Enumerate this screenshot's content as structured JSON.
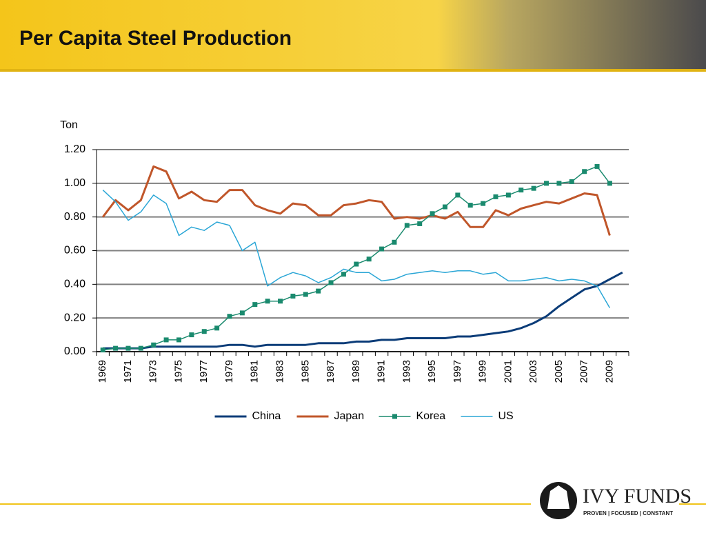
{
  "chart_data": {
    "type": "line",
    "title": "Per Capita Steel Production",
    "y_label": "Ton",
    "categories": [
      "1969",
      null,
      "1971",
      null,
      "1973",
      null,
      "1975",
      null,
      "1977",
      null,
      "1979",
      null,
      "1981",
      null,
      "1983",
      null,
      "1985",
      null,
      "1987",
      null,
      "1989",
      null,
      "1991",
      null,
      "1993",
      null,
      "1995",
      null,
      "1997",
      null,
      "1999",
      null,
      "2001",
      null,
      "2003",
      null,
      "2005",
      null,
      "2007",
      null,
      "2009",
      null
    ],
    "ylim": [
      0,
      1.2
    ],
    "yticks": [
      {
        "value": 0,
        "label": "0.00"
      },
      {
        "value": 0.2,
        "label": "0.20"
      },
      {
        "value": 0.4,
        "label": "0.40"
      },
      {
        "value": 0.6,
        "label": "0.60"
      },
      {
        "value": 0.8,
        "label": "0.80"
      },
      {
        "value": 1,
        "label": "1.00"
      },
      {
        "value": 1.2,
        "label": "1.20"
      }
    ],
    "grid": true,
    "legend": "bottom",
    "series": [
      {
        "name": "China",
        "color": "#0b3c78",
        "width": 3,
        "values": [
          0.02,
          0.02,
          0.02,
          0.02,
          0.03,
          0.03,
          0.03,
          0.03,
          0.03,
          0.03,
          0.04,
          0.04,
          0.03,
          0.04,
          0.04,
          0.04,
          0.04,
          0.05,
          0.05,
          0.05,
          0.06,
          0.06,
          0.07,
          0.07,
          0.08,
          0.08,
          0.08,
          0.08,
          0.09,
          0.09,
          0.1,
          0.11,
          0.12,
          0.14,
          0.17,
          0.21,
          0.27,
          0.32,
          0.37,
          0.39,
          0.43,
          0.47
        ]
      },
      {
        "name": "Japan",
        "color": "#c0562a",
        "width": 3,
        "values": [
          0.8,
          0.9,
          0.84,
          0.9,
          1.1,
          1.07,
          0.91,
          0.95,
          0.9,
          0.89,
          0.96,
          0.96,
          0.87,
          0.84,
          0.82,
          0.88,
          0.87,
          0.81,
          0.81,
          0.87,
          0.88,
          0.9,
          0.89,
          0.79,
          0.8,
          0.79,
          0.81,
          0.79,
          0.83,
          0.74,
          0.74,
          0.84,
          0.81,
          0.85,
          0.87,
          0.89,
          0.88,
          0.91,
          0.94,
          0.93,
          0.69,
          null
        ]
      },
      {
        "name": "Korea",
        "color": "#1a8a6e",
        "width": 1.5,
        "marker": "square",
        "values": [
          0.01,
          0.02,
          0.02,
          0.02,
          0.04,
          0.07,
          0.07,
          0.1,
          0.12,
          0.14,
          0.21,
          0.23,
          0.28,
          0.3,
          0.3,
          0.33,
          0.34,
          0.36,
          0.41,
          0.46,
          0.52,
          0.55,
          0.61,
          0.65,
          0.75,
          0.76,
          0.82,
          0.86,
          0.93,
          0.87,
          0.88,
          0.92,
          0.93,
          0.96,
          0.97,
          1.0,
          1.0,
          1.01,
          1.07,
          1.1,
          1.0,
          null
        ]
      },
      {
        "name": "US",
        "color": "#2aa6d6",
        "width": 1.5,
        "values": [
          0.96,
          0.89,
          0.78,
          0.83,
          0.93,
          0.88,
          0.69,
          0.74,
          0.72,
          0.77,
          0.75,
          0.6,
          0.65,
          0.39,
          0.44,
          0.47,
          0.45,
          0.41,
          0.44,
          0.49,
          0.47,
          0.47,
          0.42,
          0.43,
          0.46,
          0.47,
          0.48,
          0.47,
          0.48,
          0.48,
          0.46,
          0.47,
          0.42,
          0.42,
          0.43,
          0.44,
          0.42,
          0.43,
          0.42,
          0.39,
          0.26,
          null
        ]
      }
    ]
  },
  "logo": {
    "name": "IVY FUNDS",
    "tagline": "PROVEN | FOCUSED | CONSTANT"
  }
}
